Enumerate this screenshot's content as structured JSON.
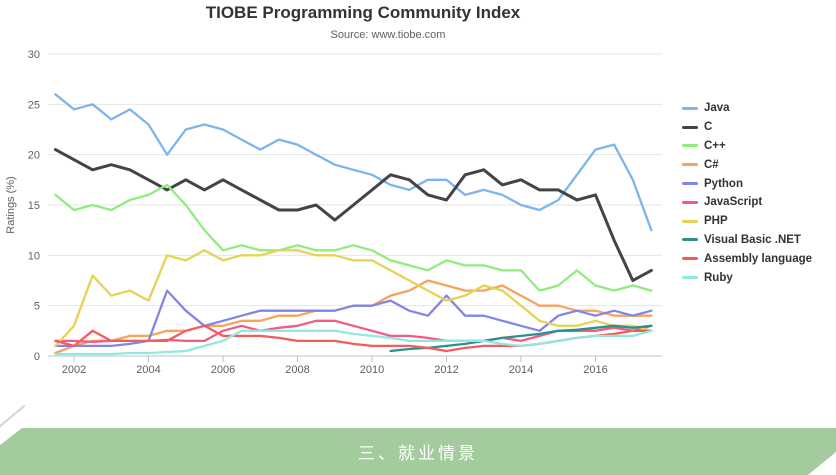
{
  "header": {
    "title": "TIOBE Programming Community Index",
    "subtitle": "Source: www.tiobe.com"
  },
  "chart_data": {
    "type": "line",
    "title": "TIOBE Programming Community Index",
    "subtitle": "Source: www.tiobe.com",
    "xlabel": "",
    "ylabel": "Ratings (%)",
    "ylim": [
      0,
      30
    ],
    "xlim": [
      2001.4,
      2017.8
    ],
    "y_ticks": [
      0,
      5,
      10,
      15,
      20,
      25,
      30
    ],
    "x_ticks": [
      2002,
      2004,
      2006,
      2008,
      2010,
      2012,
      2014,
      2016
    ],
    "grid": true,
    "legend_position": "right",
    "x": [
      2001.5,
      2002,
      2002.5,
      2003,
      2003.5,
      2004,
      2004.5,
      2005,
      2005.5,
      2006,
      2006.5,
      2007,
      2007.5,
      2008,
      2008.5,
      2009,
      2009.5,
      2010,
      2010.5,
      2011,
      2011.5,
      2012,
      2012.5,
      2013,
      2013.5,
      2014,
      2014.5,
      2015,
      2015.5,
      2016,
      2016.5,
      2017,
      2017.5
    ],
    "series": [
      {
        "name": "Java",
        "color": "#7cb5ec",
        "values": [
          26,
          24.5,
          25,
          23.5,
          24.5,
          23,
          20,
          22.5,
          23,
          22.5,
          21.5,
          20.5,
          21.5,
          21,
          20,
          19,
          18.5,
          18,
          17,
          16.5,
          17.5,
          17.5,
          16,
          16.5,
          16,
          15,
          14.5,
          15.5,
          18,
          20.5,
          21,
          17.5,
          12.5
        ]
      },
      {
        "name": "C",
        "color": "#434348",
        "values": [
          20.5,
          19.5,
          18.5,
          19,
          18.5,
          17.5,
          16.5,
          17.5,
          16.5,
          17.5,
          16.5,
          15.5,
          14.5,
          14.5,
          15,
          13.5,
          15,
          16.5,
          18,
          17.5,
          16,
          15.5,
          18,
          18.5,
          17,
          17.5,
          16.5,
          16.5,
          15.5,
          16,
          11.5,
          7.5,
          8.5
        ]
      },
      {
        "name": "C++",
        "color": "#90ed7d",
        "values": [
          16,
          14.5,
          15,
          14.5,
          15.5,
          16,
          17,
          15,
          12.5,
          10.5,
          11,
          10.5,
          10.5,
          11,
          10.5,
          10.5,
          11,
          10.5,
          9.5,
          9,
          8.5,
          9.5,
          9,
          9,
          8.5,
          8.5,
          6.5,
          7,
          8.5,
          7,
          6.5,
          7,
          6.5
        ]
      },
      {
        "name": "C#",
        "color": "#f7a35c",
        "values": [
          0.3,
          1,
          1.5,
          1.5,
          2,
          2,
          2.5,
          2.5,
          3,
          3,
          3.5,
          3.5,
          4,
          4,
          4.5,
          4.5,
          5,
          5,
          6,
          6.5,
          7.5,
          7,
          6.5,
          6.5,
          7,
          6,
          5,
          5,
          4.5,
          4.5,
          4,
          4,
          4
        ]
      },
      {
        "name": "Python",
        "color": "#8085e9",
        "values": [
          1,
          1,
          1,
          1,
          1.2,
          1.5,
          6.5,
          4.5,
          3,
          3.5,
          4,
          4.5,
          4.5,
          4.5,
          4.5,
          4.5,
          5,
          5,
          5.5,
          4.5,
          4,
          6,
          4,
          4,
          3.5,
          3,
          2.5,
          4,
          4.5,
          4,
          4.5,
          4,
          4.5
        ]
      },
      {
        "name": "JavaScript",
        "color": "#f15c80",
        "values": [
          1.5,
          1.5,
          1.4,
          1.5,
          1.5,
          1.5,
          1.6,
          1.5,
          1.5,
          2.5,
          3,
          2.5,
          2.8,
          3,
          3.5,
          3.5,
          3,
          2.5,
          2,
          2,
          1.8,
          1.5,
          1.5,
          1.5,
          1.8,
          1.5,
          2,
          2.5,
          2.5,
          2.5,
          2.8,
          2.5,
          3
        ]
      },
      {
        "name": "PHP",
        "color": "#e4d354",
        "values": [
          1,
          3,
          8,
          6,
          6.5,
          5.5,
          10,
          9.5,
          10.5,
          9.5,
          10,
          10,
          10.5,
          10.5,
          10,
          10,
          9.5,
          9.5,
          8.5,
          7.5,
          6.5,
          5.5,
          6,
          7,
          6.5,
          5,
          3.5,
          3,
          3,
          3.5,
          3,
          3,
          2.5
        ]
      },
      {
        "name": "Visual Basic .NET",
        "color": "#2b908f",
        "values": [
          null,
          null,
          null,
          null,
          null,
          null,
          null,
          null,
          null,
          null,
          null,
          null,
          null,
          null,
          null,
          null,
          null,
          null,
          0.5,
          0.7,
          0.8,
          1,
          1.2,
          1.5,
          1.8,
          2,
          2.2,
          2.5,
          2.6,
          2.8,
          3,
          2.8,
          3
        ]
      },
      {
        "name": "Assembly language",
        "color": "#f45b5b",
        "values": [
          1.5,
          1,
          2.5,
          1.5,
          1.5,
          1.5,
          1.5,
          2.5,
          3,
          2,
          2,
          2,
          1.8,
          1.5,
          1.5,
          1.5,
          1.2,
          1,
          1,
          1,
          0.8,
          0.5,
          0.8,
          1,
          1,
          1,
          1.2,
          1.5,
          1.8,
          2,
          2.2,
          2.5,
          2.5
        ]
      },
      {
        "name": "Ruby",
        "color": "#91e8e1",
        "values": [
          0.2,
          0.2,
          0.2,
          0.2,
          0.3,
          0.3,
          0.4,
          0.5,
          1,
          1.5,
          2.5,
          2.5,
          2.5,
          2.5,
          2.5,
          2.5,
          2.2,
          2,
          1.8,
          1.5,
          1.5,
          1.5,
          1.5,
          1.5,
          1.2,
          1,
          1.2,
          1.5,
          1.8,
          2,
          2,
          2,
          2.5
        ]
      }
    ]
  },
  "banner": {
    "label": "三、就业情景",
    "color": "#a3cb9d"
  },
  "style": {
    "grid_color": "#e6e6e6",
    "axis_color": "#b9c2d0",
    "tick_label_color": "#606060"
  }
}
